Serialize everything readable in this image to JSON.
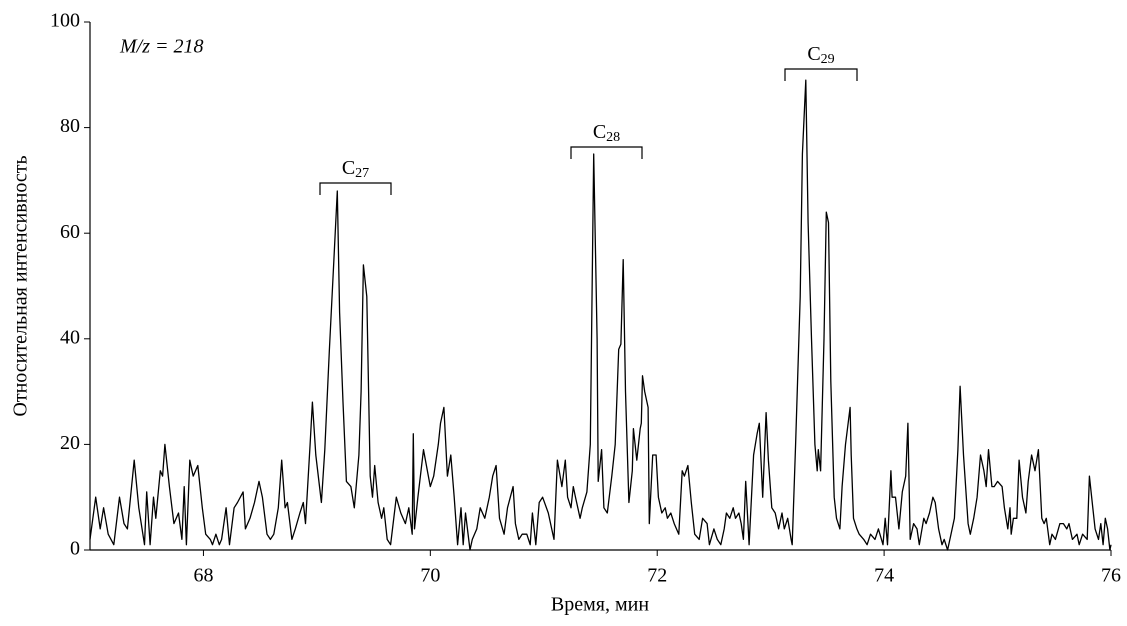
{
  "chart_data": {
    "type": "line",
    "xlabel": "Время, мин",
    "ylabel": "Относительная интенсивность",
    "annotations": [
      {
        "text": "M/z = 218"
      },
      {
        "label": "C",
        "sub": "27"
      },
      {
        "label": "C",
        "sub": "28"
      },
      {
        "label": "C",
        "sub": "29"
      }
    ],
    "color": "#000000",
    "xlim": [
      67,
      76
    ],
    "xticks": [
      68,
      70,
      72,
      74,
      76
    ],
    "ylim": [
      0,
      100
    ],
    "yticks": [
      0,
      20,
      40,
      60,
      80,
      100
    ],
    "x": [
      67.0,
      67.05,
      67.09,
      67.12,
      67.16,
      67.21,
      67.26,
      67.3,
      67.33,
      67.39,
      67.43,
      67.48,
      67.5,
      67.53,
      67.56,
      67.58,
      67.62,
      67.64,
      67.66,
      67.7,
      67.74,
      67.78,
      67.81,
      67.83,
      67.85,
      67.88,
      67.91,
      67.95,
      67.99,
      68.02,
      68.06,
      68.08,
      68.11,
      68.14,
      68.16,
      68.2,
      68.23,
      68.27,
      68.3,
      68.35,
      68.37,
      68.41,
      68.45,
      68.49,
      68.52,
      68.56,
      68.59,
      68.62,
      68.66,
      68.69,
      68.72,
      68.74,
      68.78,
      68.81,
      68.85,
      68.88,
      68.9,
      68.94,
      68.96,
      68.99,
      69.04,
      69.07,
      69.11,
      69.15,
      69.18,
      69.2,
      69.23,
      69.26,
      69.3,
      69.33,
      69.37,
      69.39,
      69.41,
      69.44,
      69.47,
      69.49,
      69.51,
      69.54,
      69.57,
      69.59,
      69.62,
      69.65,
      69.7,
      69.74,
      69.78,
      69.81,
      69.84,
      69.85,
      69.86,
      69.89,
      69.94,
      70.0,
      70.03,
      70.07,
      70.09,
      70.12,
      70.15,
      70.18,
      70.21,
      70.24,
      70.27,
      70.29,
      70.31,
      70.35,
      70.37,
      70.41,
      70.44,
      70.48,
      70.52,
      70.55,
      70.58,
      70.61,
      70.65,
      70.68,
      70.73,
      70.75,
      70.78,
      70.81,
      70.85,
      70.88,
      70.9,
      70.93,
      70.96,
      70.99,
      71.04,
      71.07,
      71.09,
      71.12,
      71.16,
      71.19,
      71.21,
      71.24,
      71.26,
      71.28,
      71.32,
      71.34,
      71.38,
      71.41,
      71.44,
      71.47,
      71.48,
      71.51,
      71.53,
      71.56,
      71.6,
      71.63,
      71.66,
      71.68,
      71.7,
      71.72,
      71.75,
      71.78,
      71.79,
      71.82,
      71.85,
      71.86,
      71.87,
      71.89,
      71.92,
      71.93,
      71.96,
      71.99,
      72.01,
      72.04,
      72.07,
      72.09,
      72.12,
      72.15,
      72.19,
      72.22,
      72.24,
      72.27,
      72.3,
      72.33,
      72.37,
      72.4,
      72.44,
      72.46,
      72.5,
      72.53,
      72.56,
      72.59,
      72.61,
      72.64,
      72.67,
      72.69,
      72.72,
      72.74,
      72.76,
      72.78,
      72.81,
      72.85,
      72.88,
      72.9,
      72.93,
      72.96,
      72.98,
      73.01,
      73.04,
      73.07,
      73.1,
      73.12,
      73.15,
      73.18,
      73.19,
      73.22,
      73.26,
      73.28,
      73.31,
      73.33,
      73.36,
      73.39,
      73.41,
      73.42,
      73.44,
      73.47,
      73.49,
      73.51,
      73.53,
      73.56,
      73.58,
      73.61,
      73.63,
      73.66,
      73.7,
      73.71,
      73.73,
      73.76,
      73.78,
      73.82,
      73.85,
      73.88,
      73.92,
      73.95,
      73.99,
      74.01,
      74.03,
      74.06,
      74.07,
      74.1,
      74.13,
      74.16,
      74.19,
      74.21,
      74.23,
      74.26,
      74.29,
      74.31,
      74.35,
      74.37,
      74.4,
      74.43,
      74.45,
      74.48,
      74.51,
      74.53,
      74.56,
      74.59,
      74.62,
      74.65,
      74.67,
      74.7,
      74.74,
      74.76,
      74.79,
      74.82,
      74.85,
      74.88,
      74.9,
      74.92,
      74.95,
      74.97,
      75.0,
      75.04,
      75.06,
      75.09,
      75.11,
      75.12,
      75.14,
      75.17,
      75.19,
      75.22,
      75.25,
      75.27,
      75.3,
      75.33,
      75.36,
      75.39,
      75.41,
      75.43,
      75.46,
      75.48,
      75.51,
      75.55,
      75.58,
      75.61,
      75.63,
      75.66,
      75.7,
      75.72,
      75.75,
      75.79,
      75.81,
      75.84,
      75.86,
      75.89,
      75.91,
      75.93,
      75.95,
      75.97,
      75.99,
      76.0
    ],
    "values": [
      2,
      10,
      4,
      8,
      3,
      1,
      10,
      5,
      4,
      17,
      8,
      1,
      11,
      1,
      10,
      6,
      15,
      14,
      20,
      12,
      5,
      7,
      2,
      12,
      1,
      17,
      14,
      16,
      8,
      3,
      2,
      1,
      3,
      1,
      2,
      8,
      1,
      8,
      9,
      11,
      4,
      6,
      9,
      13,
      10,
      3,
      2,
      3,
      8,
      17,
      8,
      9,
      2,
      4,
      7,
      9,
      5,
      20,
      28,
      18,
      9,
      19,
      38,
      55,
      68,
      45,
      28,
      13,
      12,
      8,
      18,
      30,
      54,
      48,
      14,
      10,
      16,
      9,
      6,
      8,
      2,
      1,
      10,
      7,
      5,
      8,
      3,
      22,
      4,
      10,
      19,
      12,
      14,
      20,
      24,
      27,
      14,
      18,
      10,
      1,
      8,
      1,
      7,
      0,
      2,
      4,
      8,
      6,
      10,
      14,
      16,
      6,
      3,
      8,
      12,
      5,
      2,
      3,
      3,
      1,
      7,
      1,
      9,
      10,
      7,
      4,
      2,
      17,
      12,
      17,
      10,
      8,
      12,
      10,
      6,
      8,
      11,
      20,
      75,
      40,
      13,
      19,
      8,
      7,
      14,
      20,
      38,
      39,
      55,
      30,
      9,
      15,
      23,
      17,
      23,
      24,
      33,
      30,
      27,
      5,
      18,
      18,
      10,
      7,
      8,
      6,
      7,
      5,
      3,
      15,
      14,
      16,
      9,
      3,
      2,
      6,
      5,
      1,
      4,
      2,
      1,
      4,
      7,
      6,
      8,
      6,
      7,
      5,
      2,
      13,
      1,
      18,
      22,
      24,
      10,
      26,
      17,
      8,
      7,
      4,
      7,
      4,
      6,
      2,
      1,
      20,
      48,
      75,
      89,
      62,
      40,
      20,
      15,
      19,
      15,
      40,
      64,
      62,
      32,
      10,
      6,
      4,
      12,
      20,
      27,
      18,
      6,
      4,
      3,
      2,
      1,
      3,
      2,
      4,
      1,
      6,
      1,
      15,
      10,
      10,
      4,
      11,
      14,
      24,
      2,
      5,
      4,
      1,
      6,
      5,
      7,
      10,
      9,
      4,
      1,
      2,
      0,
      3,
      6,
      19,
      31,
      18,
      5,
      3,
      6,
      10,
      18,
      15,
      12,
      19,
      12,
      12,
      13,
      12,
      8,
      4,
      8,
      3,
      6,
      6,
      17,
      10,
      7,
      13,
      18,
      15,
      19,
      6,
      5,
      6,
      1,
      3,
      2,
      5,
      5,
      4,
      5,
      2,
      3,
      1,
      3,
      2,
      14,
      8,
      4,
      2,
      5,
      1,
      6,
      4,
      0,
      1
    ]
  }
}
